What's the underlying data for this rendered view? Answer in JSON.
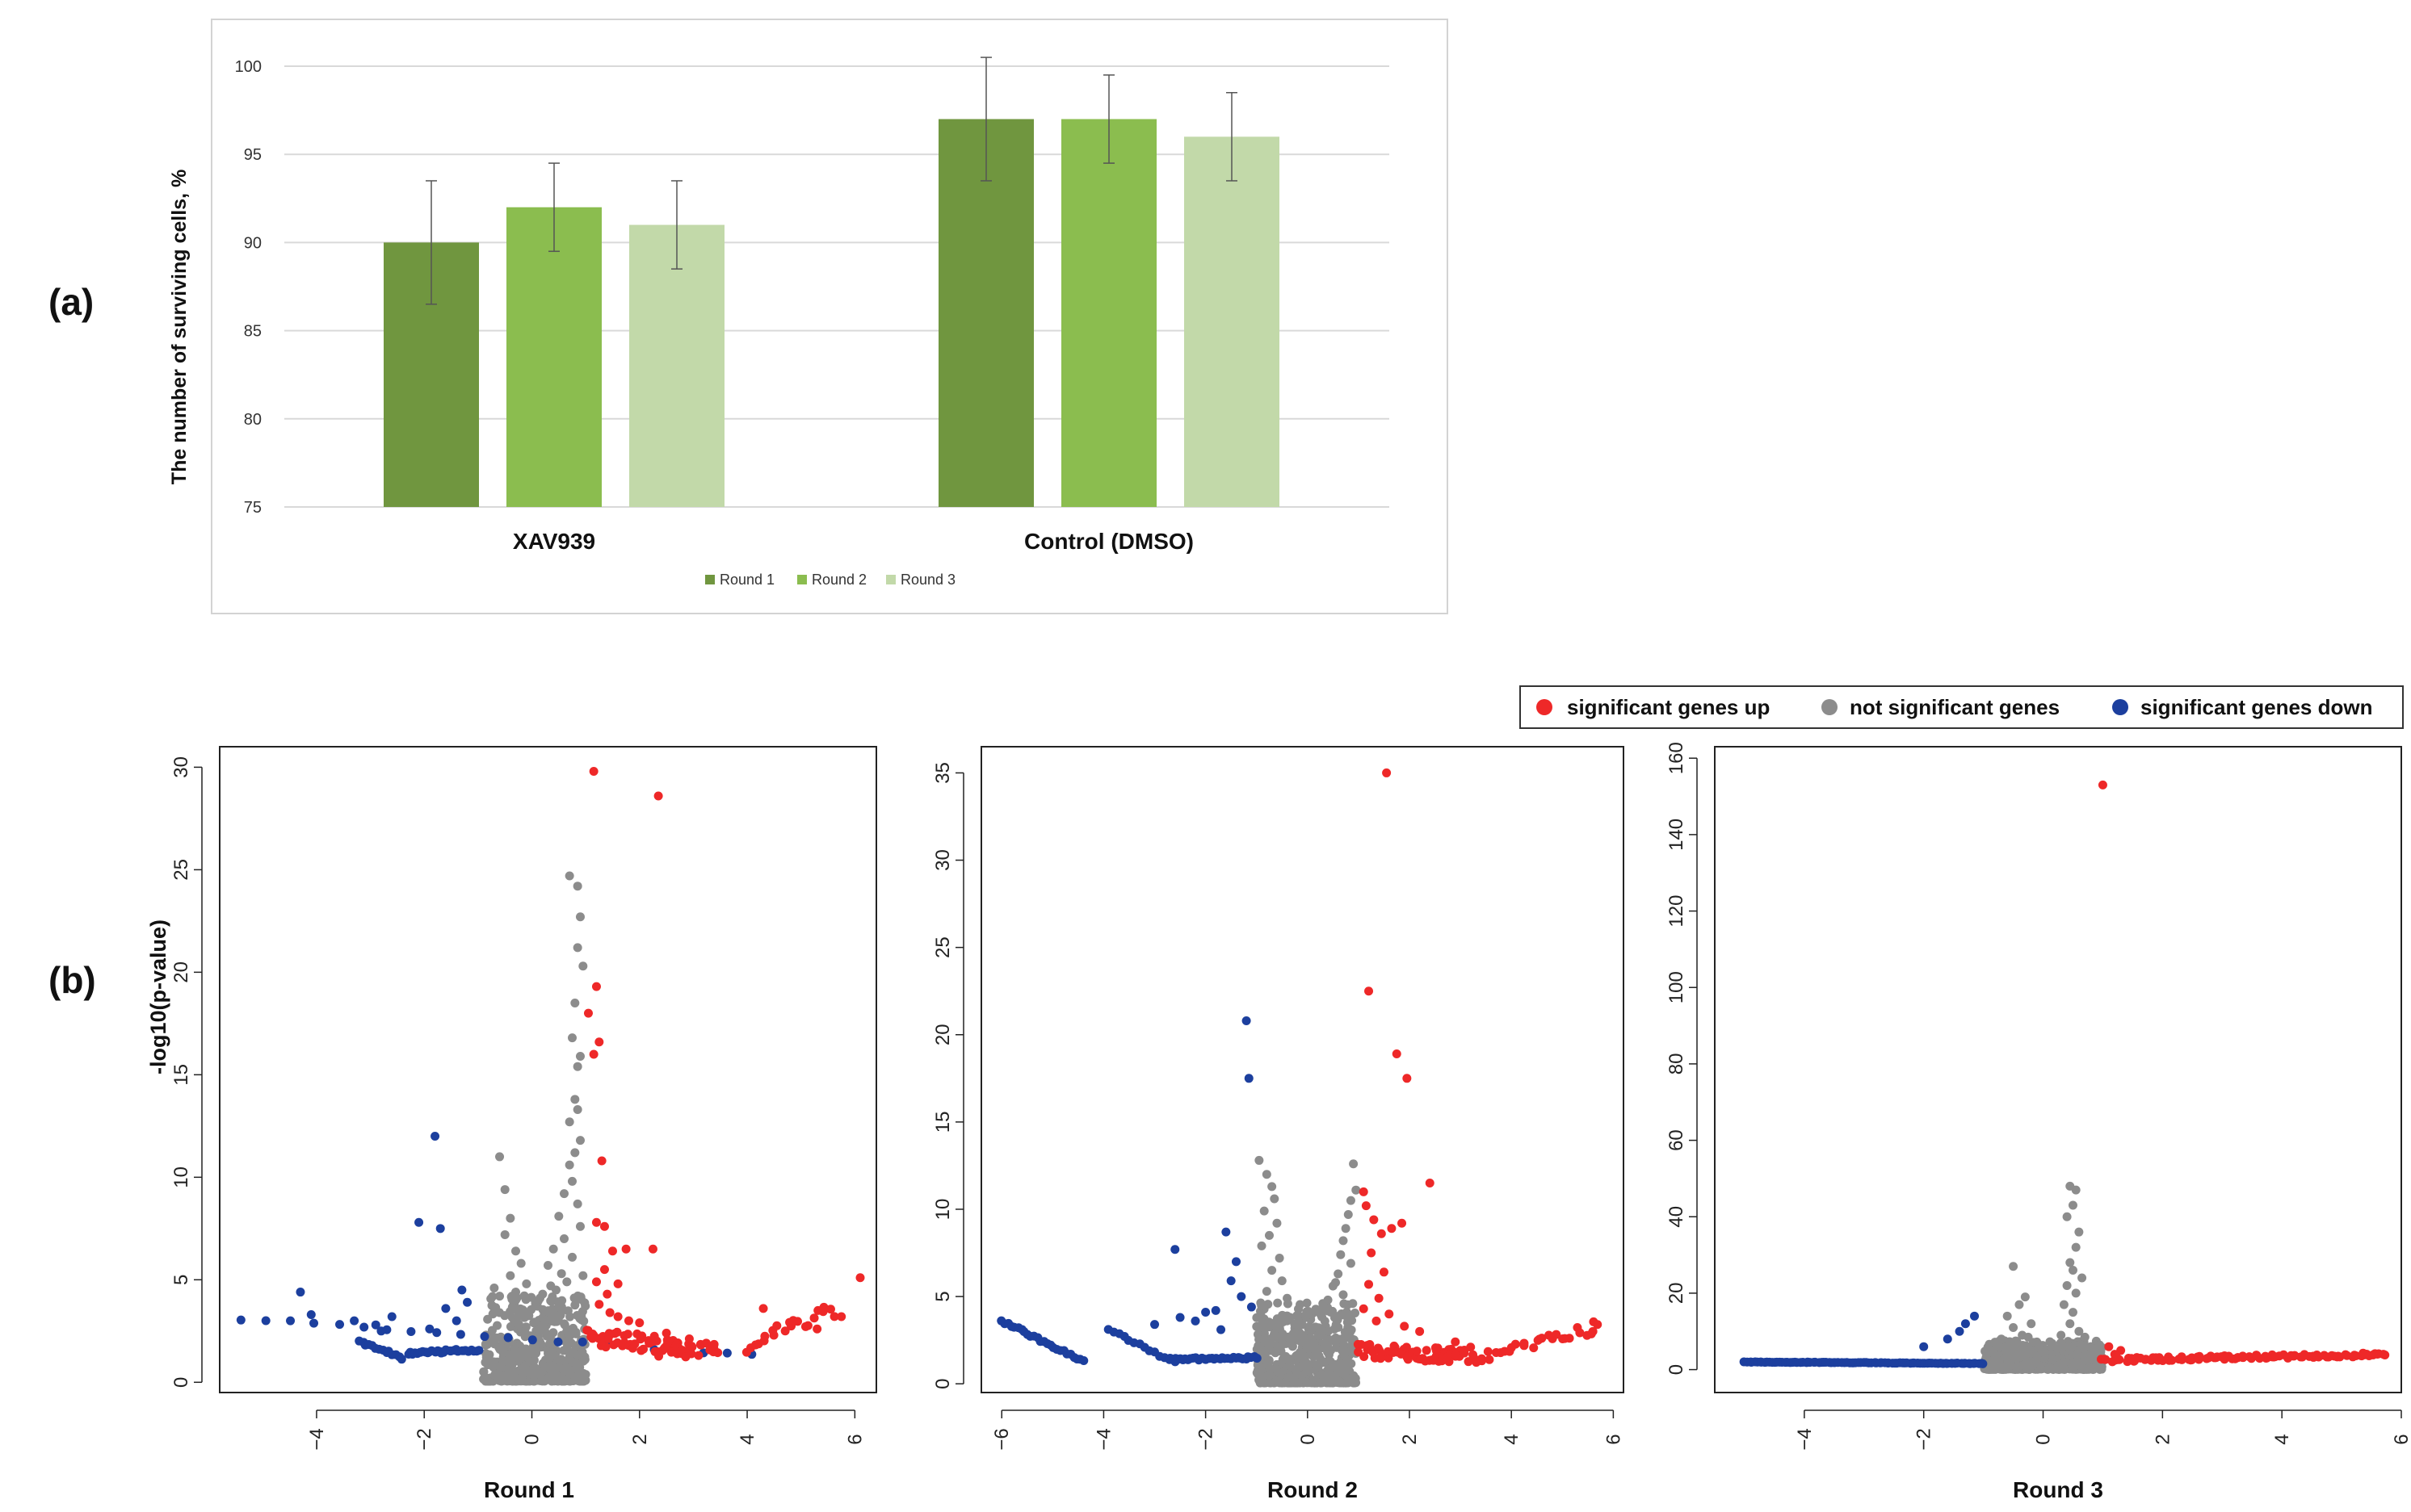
{
  "panel_labels": {
    "a": "(a)",
    "b": "(b)"
  },
  "chart_data": [
    {
      "type": "bar",
      "title": "",
      "ylabel": "The number of surviving cells, %",
      "xlabel": "",
      "ylim": [
        75,
        100
      ],
      "yticks": [
        75,
        80,
        85,
        90,
        95,
        100
      ],
      "grid": true,
      "legend_position": "bottom-center",
      "categories": [
        "XAV939",
        "Control (DMSO)"
      ],
      "series": [
        {
          "name": "Round 1",
          "color": "#70963f",
          "values": [
            90,
            97
          ],
          "errors": [
            3.5,
            3.5
          ]
        },
        {
          "name": "Round 2",
          "color": "#8bbd4f",
          "values": [
            92,
            97
          ],
          "errors": [
            2.5,
            2.5
          ]
        },
        {
          "name": "Round 3",
          "color": "#c2d9a9",
          "values": [
            91,
            96
          ],
          "errors": [
            2.5,
            2.5
          ]
        }
      ]
    },
    {
      "type": "scatter",
      "title": "Round 1",
      "ylabel": "-log10(p-value)",
      "xlim": [
        -5.8,
        6.4
      ],
      "ylim": [
        -0.5,
        31
      ],
      "xticks": [
        -4,
        -2,
        0,
        2,
        4,
        6
      ],
      "yticks": [
        0,
        5,
        10,
        15,
        20,
        25,
        30
      ],
      "cluster": {
        "xmin": -0.9,
        "xmax": 1.0,
        "count": 520,
        "ymax": 4.2
      },
      "tails": {
        "down": [
          [
            -5.4,
            3.1,
            4.1,
            1.3,
            22
          ],
          [
            -3.2,
            2.0,
            -2.4,
            1.2,
            14
          ],
          [
            -2.3,
            1.4,
            -1.0,
            1.6,
            30
          ]
        ],
        "up": [
          [
            1.0,
            1.8,
            3.0,
            1.3,
            55
          ],
          [
            4.0,
            1.2,
            5.6,
            3.2,
            22
          ],
          [
            2.3,
            1.2,
            3.5,
            1.2,
            22
          ]
        ]
      },
      "scatter_down": [
        [
          -4.3,
          4.4
        ],
        [
          -4.1,
          3.3
        ],
        [
          -1.8,
          12.0
        ],
        [
          -2.1,
          7.8
        ],
        [
          -1.7,
          7.5
        ],
        [
          -1.3,
          4.5
        ],
        [
          -1.6,
          3.6
        ],
        [
          -2.8,
          2.5
        ],
        [
          -3.3,
          3.0
        ],
        [
          -2.6,
          3.2
        ],
        [
          -1.2,
          3.9
        ],
        [
          -1.4,
          3.0
        ],
        [
          -2.9,
          2.8
        ],
        [
          -1.9,
          2.6
        ]
      ],
      "scatter_grey": [
        [
          -0.6,
          11.0
        ],
        [
          -0.5,
          9.4
        ],
        [
          -0.4,
          8.0
        ],
        [
          -0.5,
          7.2
        ],
        [
          -0.3,
          6.4
        ],
        [
          -0.2,
          5.8
        ],
        [
          -0.4,
          5.2
        ],
        [
          -0.7,
          4.6
        ],
        [
          -0.1,
          4.8
        ],
        [
          -0.3,
          4.4
        ],
        [
          -0.6,
          4.2
        ],
        [
          0.7,
          24.7
        ],
        [
          0.85,
          24.2
        ],
        [
          0.9,
          22.7
        ],
        [
          0.85,
          21.2
        ],
        [
          0.95,
          20.3
        ],
        [
          0.8,
          18.5
        ],
        [
          0.75,
          16.8
        ],
        [
          0.9,
          15.9
        ],
        [
          0.85,
          15.4
        ],
        [
          0.8,
          13.8
        ],
        [
          0.85,
          13.3
        ],
        [
          0.7,
          12.7
        ],
        [
          0.9,
          11.8
        ],
        [
          0.8,
          11.2
        ],
        [
          0.7,
          10.6
        ],
        [
          0.75,
          9.8
        ],
        [
          0.6,
          9.2
        ],
        [
          0.85,
          8.7
        ],
        [
          0.5,
          8.1
        ],
        [
          0.9,
          7.6
        ],
        [
          0.6,
          7.0
        ],
        [
          0.4,
          6.5
        ],
        [
          0.75,
          6.1
        ],
        [
          0.3,
          5.7
        ],
        [
          0.55,
          5.3
        ],
        [
          0.65,
          4.9
        ],
        [
          0.45,
          4.5
        ],
        [
          0.2,
          4.3
        ],
        [
          0.95,
          5.2
        ],
        [
          0.35,
          4.7
        ],
        [
          0.15,
          4.1
        ]
      ],
      "scatter_up": [
        [
          1.15,
          29.8
        ],
        [
          2.35,
          28.6
        ],
        [
          1.2,
          19.3
        ],
        [
          1.05,
          18.0
        ],
        [
          1.25,
          16.6
        ],
        [
          1.15,
          16.0
        ],
        [
          1.3,
          10.8
        ],
        [
          1.2,
          7.8
        ],
        [
          1.35,
          7.6
        ],
        [
          1.5,
          6.4
        ],
        [
          2.25,
          6.5
        ],
        [
          1.75,
          6.5
        ],
        [
          1.35,
          5.5
        ],
        [
          1.2,
          4.9
        ],
        [
          1.6,
          4.8
        ],
        [
          1.4,
          4.3
        ],
        [
          1.25,
          3.8
        ],
        [
          1.45,
          3.4
        ],
        [
          1.6,
          3.2
        ],
        [
          2.0,
          2.9
        ],
        [
          6.1,
          5.1
        ],
        [
          5.75,
          3.2
        ],
        [
          5.3,
          2.6
        ],
        [
          4.3,
          3.6
        ],
        [
          1.8,
          3.0
        ],
        [
          2.5,
          2.4
        ]
      ]
    },
    {
      "type": "scatter",
      "title": "Round 2",
      "ylabel": "",
      "xlim": [
        -6.4,
        6.2
      ],
      "ylim": [
        -0.5,
        36.5
      ],
      "xticks": [
        -6,
        -4,
        -2,
        0,
        2,
        4,
        6
      ],
      "yticks": [
        0,
        5,
        10,
        15,
        20,
        25,
        30,
        35
      ],
      "cluster": {
        "xmin": -1.0,
        "xmax": 0.95,
        "count": 520,
        "ymax": 4.6
      },
      "tails": {
        "down": [
          [
            -6.0,
            3.6,
            -4.4,
            1.3,
            26
          ],
          [
            -3.9,
            3.1,
            -2.6,
            1.2,
            14
          ],
          [
            -2.7,
            1.4,
            -1.0,
            1.5,
            34
          ]
        ],
        "up": [
          [
            1.0,
            1.5,
            3.0,
            1.2,
            60
          ],
          [
            3.7,
            1.2,
            5.7,
            3.0,
            24
          ],
          [
            2.5,
            1.3,
            3.6,
            1.2,
            18
          ]
        ]
      },
      "scatter_down": [
        [
          -1.2,
          20.8
        ],
        [
          -1.15,
          17.5
        ],
        [
          -1.6,
          8.7
        ],
        [
          -2.6,
          7.7
        ],
        [
          -1.4,
          7.0
        ],
        [
          -1.5,
          5.9
        ],
        [
          -1.3,
          5.0
        ],
        [
          -1.8,
          4.2
        ],
        [
          -2.2,
          3.6
        ],
        [
          -3.0,
          3.4
        ],
        [
          -1.1,
          4.4
        ],
        [
          -2.5,
          3.8
        ],
        [
          -1.7,
          3.1
        ],
        [
          -2.0,
          4.1
        ]
      ],
      "scatter_grey": [
        [
          -0.95,
          12.8
        ],
        [
          -0.8,
          12.0
        ],
        [
          -0.7,
          11.3
        ],
        [
          -0.65,
          10.6
        ],
        [
          -0.85,
          9.9
        ],
        [
          -0.6,
          9.2
        ],
        [
          -0.75,
          8.5
        ],
        [
          -0.9,
          7.9
        ],
        [
          -0.55,
          7.2
        ],
        [
          -0.7,
          6.5
        ],
        [
          -0.5,
          5.9
        ],
        [
          -0.8,
          5.3
        ],
        [
          -0.4,
          4.9
        ],
        [
          0.9,
          12.6
        ],
        [
          0.95,
          11.1
        ],
        [
          0.85,
          10.5
        ],
        [
          0.8,
          9.7
        ],
        [
          0.75,
          8.9
        ],
        [
          0.7,
          8.2
        ],
        [
          0.65,
          7.4
        ],
        [
          0.85,
          6.9
        ],
        [
          0.6,
          6.3
        ],
        [
          0.5,
          5.6
        ],
        [
          0.7,
          5.1
        ],
        [
          0.4,
          4.8
        ],
        [
          0.55,
          5.8
        ],
        [
          0.3,
          4.6
        ]
      ],
      "scatter_up": [
        [
          1.55,
          35.0
        ],
        [
          1.2,
          22.5
        ],
        [
          1.75,
          18.9
        ],
        [
          1.95,
          17.5
        ],
        [
          2.4,
          11.5
        ],
        [
          1.1,
          11.0
        ],
        [
          1.15,
          10.2
        ],
        [
          1.3,
          9.4
        ],
        [
          1.65,
          8.9
        ],
        [
          1.85,
          9.2
        ],
        [
          1.45,
          8.6
        ],
        [
          1.25,
          7.5
        ],
        [
          1.5,
          6.4
        ],
        [
          1.2,
          5.7
        ],
        [
          1.4,
          4.9
        ],
        [
          1.1,
          4.3
        ],
        [
          1.6,
          4.0
        ],
        [
          1.35,
          3.6
        ],
        [
          1.9,
          3.3
        ],
        [
          2.2,
          3.0
        ],
        [
          5.6,
          3.0
        ],
        [
          2.9,
          2.4
        ],
        [
          3.2,
          2.1
        ]
      ]
    },
    {
      "type": "scatter",
      "title": "Round 3",
      "ylabel": "",
      "xlim": [
        -5.5,
        6.0
      ],
      "ylim": [
        -6,
        163
      ],
      "xticks": [
        -4,
        -2,
        0,
        2,
        4,
        6
      ],
      "yticks": [
        0,
        20,
        40,
        60,
        80,
        100,
        120,
        140,
        160
      ],
      "cluster": {
        "xmin": -1.0,
        "xmax": 1.0,
        "count": 520,
        "ymax": 7.5
      },
      "tails": {
        "down": [
          [
            -5.0,
            2.0,
            -1.0,
            1.6,
            95
          ]
        ],
        "up": [
          [
            1.0,
            2.0,
            5.7,
            3.5,
            105
          ]
        ]
      },
      "scatter_down": [
        [
          -1.3,
          12.0
        ],
        [
          -1.15,
          14.0
        ],
        [
          -1.4,
          10.0
        ],
        [
          -1.6,
          8.0
        ],
        [
          -2.0,
          6.0
        ]
      ],
      "scatter_grey": [
        [
          -0.5,
          27.0
        ],
        [
          -0.3,
          19.0
        ],
        [
          -0.4,
          17.0
        ],
        [
          -0.6,
          14.0
        ],
        [
          -0.2,
          12.0
        ],
        [
          -0.5,
          11.0
        ],
        [
          -0.35,
          9.0
        ],
        [
          -0.7,
          8.0
        ],
        [
          -0.25,
          8.5
        ],
        [
          0.45,
          48.0
        ],
        [
          0.55,
          47.0
        ],
        [
          0.5,
          43.0
        ],
        [
          0.4,
          40.0
        ],
        [
          0.6,
          36.0
        ],
        [
          0.55,
          32.0
        ],
        [
          0.45,
          28.0
        ],
        [
          0.5,
          26.0
        ],
        [
          0.65,
          24.0
        ],
        [
          0.4,
          22.0
        ],
        [
          0.55,
          20.0
        ],
        [
          0.35,
          17.0
        ],
        [
          0.5,
          15.0
        ],
        [
          0.45,
          12.0
        ],
        [
          0.6,
          10.0
        ],
        [
          0.3,
          9.0
        ],
        [
          0.7,
          8.5
        ]
      ],
      "scatter_up": [
        [
          1.0,
          153.0
        ],
        [
          1.1,
          6.0
        ],
        [
          1.3,
          5.0
        ],
        [
          1.2,
          4.0
        ],
        [
          5.7,
          4.0
        ]
      ]
    }
  ],
  "volcano_legend": {
    "items": [
      {
        "label": "significant genes up",
        "color": "#ee2828"
      },
      {
        "label": "not significant genes",
        "color": "#8c8c8c"
      },
      {
        "label": "significant genes down",
        "color": "#1c3f9e"
      }
    ]
  },
  "colors": {
    "up": "#ee2828",
    "grey": "#8c8c8c",
    "down": "#1c3f9e"
  }
}
